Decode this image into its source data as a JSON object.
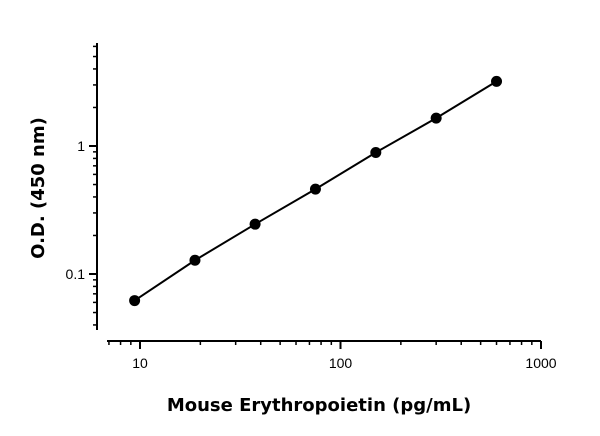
{
  "chart_data": {
    "type": "line",
    "title": "",
    "xlabel": "Mouse Erythropoietin  (pg/mL)",
    "ylabel": "O.D. (450 nm)",
    "xscale": "log",
    "yscale": "log",
    "xlim": [
      6.5,
      1000
    ],
    "ylim": [
      0.035,
      6
    ],
    "x_ticks": [
      10,
      100,
      1000
    ],
    "x_tick_labels": [
      "10",
      "100",
      "1000"
    ],
    "y_ticks": [
      0.1,
      1
    ],
    "y_tick_labels": [
      "0.1",
      "1"
    ],
    "grid": false,
    "legend": "none",
    "marker": "filled-circle",
    "line_color": "#000000",
    "marker_color": "#000000",
    "series": [
      {
        "x": [
          9.4,
          18.8,
          37.5,
          75,
          150,
          300,
          600
        ],
        "y": [
          0.062,
          0.128,
          0.245,
          0.46,
          0.89,
          1.65,
          3.2
        ]
      }
    ]
  }
}
